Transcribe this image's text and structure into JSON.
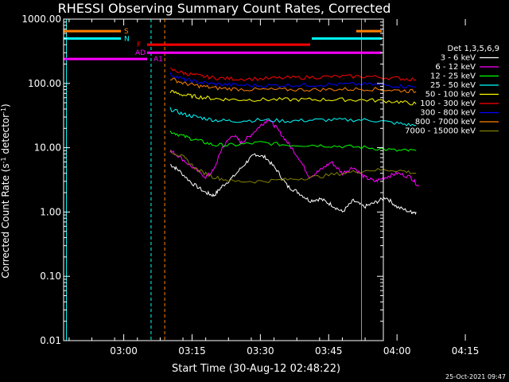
{
  "chart_data": {
    "type": "line",
    "title": "RHESSI Observing Summary Count Rates, Corrected",
    "xlabel": "Start Time (30-Aug-12 02:48:22)",
    "ylabel_main": "Corrected Count Rate (s",
    "ylabel_sup": "-1",
    "ylabel_mid": " detector",
    "ylabel_end": ")",
    "footer_date": "25-Oct-2021 09:47",
    "yscale": "log",
    "ylim": [
      0.01,
      1000
    ],
    "xlim_minutes": [
      2.78,
      3.95
    ],
    "x_ticks": [
      {
        "t": 3.0,
        "label": "03:00"
      },
      {
        "t": 3.25,
        "label": "03:15"
      },
      {
        "t": 3.5,
        "label": "03:30"
      },
      {
        "t": 3.75,
        "label": "03:45"
      },
      {
        "t": 4.0,
        "label": "04:00"
      },
      {
        "t": 4.25,
        "label": "04:15"
      }
    ],
    "y_ticks": [
      {
        "v": 1000,
        "label": "1000.00"
      },
      {
        "v": 100,
        "label": "100.00"
      },
      {
        "v": 10,
        "label": "10.00"
      },
      {
        "v": 1,
        "label": "1.00"
      },
      {
        "v": 0.1,
        "label": "0.10"
      },
      {
        "v": 0.01,
        "label": "0.01"
      }
    ],
    "legend_title": "Det 1,3,5,6,9",
    "legend_position": "right",
    "series": [
      {
        "name": "3 - 6 keV",
        "color": "#ffffff",
        "values": [
          [
            3.17,
            5.5
          ],
          [
            3.2,
            4.5
          ],
          [
            3.25,
            2.8
          ],
          [
            3.3,
            2.0
          ],
          [
            3.33,
            1.8
          ],
          [
            3.36,
            2.5
          ],
          [
            3.4,
            3.5
          ],
          [
            3.45,
            6.0
          ],
          [
            3.48,
            8.0
          ],
          [
            3.52,
            7.0
          ],
          [
            3.56,
            4.5
          ],
          [
            3.6,
            2.5
          ],
          [
            3.64,
            2.0
          ],
          [
            3.68,
            1.5
          ],
          [
            3.72,
            1.6
          ],
          [
            3.76,
            1.3
          ],
          [
            3.8,
            1.0
          ],
          [
            3.84,
            1.5
          ],
          [
            3.88,
            1.2
          ],
          [
            3.92,
            1.4
          ],
          [
            3.96,
            1.7
          ],
          [
            4.0,
            1.2
          ],
          [
            4.05,
            1.0
          ],
          [
            4.07,
            1.0
          ]
        ]
      },
      {
        "name": "6 - 12 keV",
        "color": "#ff00ff",
        "values": [
          [
            3.17,
            9
          ],
          [
            3.2,
            7.5
          ],
          [
            3.25,
            5.0
          ],
          [
            3.3,
            3.5
          ],
          [
            3.33,
            4.5
          ],
          [
            3.36,
            10
          ],
          [
            3.4,
            16
          ],
          [
            3.43,
            12
          ],
          [
            3.46,
            15
          ],
          [
            3.5,
            22
          ],
          [
            3.53,
            28
          ],
          [
            3.56,
            20
          ],
          [
            3.6,
            12
          ],
          [
            3.64,
            7
          ],
          [
            3.68,
            3.5
          ],
          [
            3.72,
            4.5
          ],
          [
            3.76,
            6
          ],
          [
            3.8,
            4
          ],
          [
            3.84,
            5
          ],
          [
            3.88,
            3.5
          ],
          [
            3.92,
            3.0
          ],
          [
            3.96,
            3.5
          ],
          [
            4.0,
            4.0
          ],
          [
            4.05,
            3.5
          ],
          [
            4.08,
            2.5
          ]
        ]
      },
      {
        "name": "12 - 25 keV",
        "color": "#00ff00",
        "values": [
          [
            3.17,
            18
          ],
          [
            3.22,
            15
          ],
          [
            3.27,
            13
          ],
          [
            3.33,
            11
          ],
          [
            3.4,
            11
          ],
          [
            3.5,
            12
          ],
          [
            3.6,
            11
          ],
          [
            3.7,
            11
          ],
          [
            3.8,
            10.5
          ],
          [
            3.9,
            10
          ],
          [
            4.0,
            9
          ],
          [
            4.07,
            9
          ]
        ]
      },
      {
        "name": "25 - 50 keV",
        "color": "#00ffff",
        "values": [
          [
            3.17,
            40
          ],
          [
            3.22,
            33
          ],
          [
            3.27,
            30
          ],
          [
            3.33,
            27
          ],
          [
            3.4,
            26
          ],
          [
            3.5,
            27
          ],
          [
            3.6,
            26
          ],
          [
            3.7,
            27
          ],
          [
            3.8,
            27
          ],
          [
            3.9,
            27
          ],
          [
            4.0,
            24
          ],
          [
            4.07,
            22
          ]
        ]
      },
      {
        "name": "50 - 100 keV",
        "color": "#ffff00",
        "values": [
          [
            3.17,
            75
          ],
          [
            3.22,
            66
          ],
          [
            3.27,
            62
          ],
          [
            3.33,
            58
          ],
          [
            3.4,
            56
          ],
          [
            3.5,
            56
          ],
          [
            3.6,
            56
          ],
          [
            3.7,
            56
          ],
          [
            3.8,
            56
          ],
          [
            3.9,
            55
          ],
          [
            4.0,
            52
          ],
          [
            4.07,
            48
          ]
        ]
      },
      {
        "name": "100 - 300 keV",
        "color": "#ff0000",
        "values": [
          [
            3.17,
            165
          ],
          [
            3.22,
            145
          ],
          [
            3.27,
            132
          ],
          [
            3.33,
            122
          ],
          [
            3.4,
            118
          ],
          [
            3.5,
            118
          ],
          [
            3.6,
            122
          ],
          [
            3.7,
            125
          ],
          [
            3.8,
            128
          ],
          [
            3.9,
            128
          ],
          [
            4.0,
            120
          ],
          [
            4.07,
            115
          ]
        ]
      },
      {
        "name": "300 - 800 keV",
        "color": "#0000ff",
        "values": [
          [
            3.17,
            140
          ],
          [
            3.22,
            115
          ],
          [
            3.27,
            105
          ],
          [
            3.33,
            98
          ],
          [
            3.4,
            95
          ],
          [
            3.5,
            92
          ],
          [
            3.6,
            94
          ],
          [
            3.7,
            95
          ],
          [
            3.8,
            97
          ],
          [
            3.9,
            97
          ],
          [
            4.0,
            92
          ],
          [
            4.07,
            88
          ]
        ]
      },
      {
        "name": "800 - 7000 keV",
        "color": "#ff8000",
        "values": [
          [
            3.17,
            120
          ],
          [
            3.22,
            100
          ],
          [
            3.27,
            92
          ],
          [
            3.33,
            85
          ],
          [
            3.4,
            82
          ],
          [
            3.5,
            80
          ],
          [
            3.6,
            80
          ],
          [
            3.7,
            80
          ],
          [
            3.8,
            81
          ],
          [
            3.9,
            82
          ],
          [
            4.0,
            78
          ],
          [
            4.07,
            75
          ]
        ]
      },
      {
        "name": "7000 - 15000 keV",
        "color": "#808000",
        "values": [
          [
            3.17,
            9
          ],
          [
            3.22,
            7
          ],
          [
            3.27,
            4.5
          ],
          [
            3.33,
            3.5
          ],
          [
            3.4,
            3.0
          ],
          [
            3.5,
            3.0
          ],
          [
            3.6,
            3.2
          ],
          [
            3.7,
            3.5
          ],
          [
            3.8,
            4.0
          ],
          [
            3.9,
            4.5
          ],
          [
            4.0,
            4.5
          ],
          [
            4.07,
            4.0
          ]
        ]
      }
    ],
    "flag_bars": [
      {
        "label": "S",
        "color": "#ff8000",
        "level": 650
      },
      {
        "label": "N",
        "color": "#00ffff",
        "level": 500
      },
      {
        "label": "F",
        "color": "#ff0000",
        "level": 400
      },
      {
        "label": "AD",
        "color": "#ff00ff",
        "level": 300
      },
      {
        "label": "A1",
        "color": "#ff00ff",
        "level": 240
      }
    ]
  }
}
